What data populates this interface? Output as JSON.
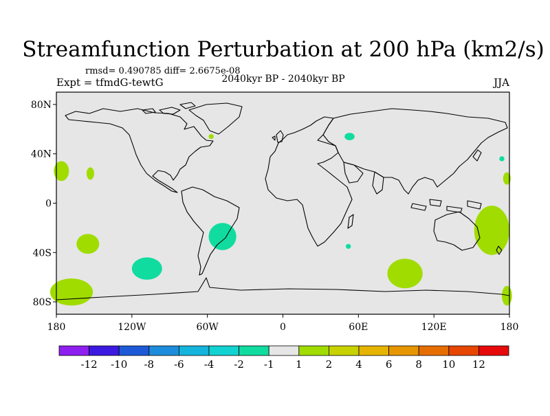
{
  "chart_data": {
    "type": "map",
    "title": "Streamfunction Perturbation at 200 hPa (km2/s)",
    "stats": "rmsd= 0.490785 diff= 2.6675e-08",
    "subtitle_left": "Expt = tfmdG-tewtG",
    "subtitle_center": "2040kyr BP - 2040kyr BP",
    "subtitle_right": "JJA",
    "x_tick_labels": [
      {
        "lon": -180,
        "label": "180"
      },
      {
        "lon": -120,
        "label": "120W"
      },
      {
        "lon": -60,
        "label": "60W"
      },
      {
        "lon": 0,
        "label": "0"
      },
      {
        "lon": 60,
        "label": "60E"
      },
      {
        "lon": 120,
        "label": "120E"
      },
      {
        "lon": 180,
        "label": "180"
      }
    ],
    "y_tick_labels": [
      {
        "lat": 80,
        "label": "80N"
      },
      {
        "lat": 40,
        "label": "40N"
      },
      {
        "lat": 0,
        "label": "0"
      },
      {
        "lat": -40,
        "label": "40S"
      },
      {
        "lat": -80,
        "label": "80S"
      }
    ],
    "lon_range": [
      -180,
      180
    ],
    "lat_range": [
      -90,
      90
    ],
    "colorbar": {
      "colors": [
        "#8f1ff0",
        "#3c19e1",
        "#1e5ad7",
        "#1e8cdc",
        "#14b4dc",
        "#12d2d2",
        "#10dca0",
        "#e6e6e6",
        "#a0dc00",
        "#c8d200",
        "#e6b400",
        "#e69600",
        "#e66e00",
        "#e64600",
        "#e60a0a"
      ],
      "labels": [
        "-12",
        "-10",
        "-8",
        "-6",
        "-4",
        "-2",
        "-1",
        "1",
        "2",
        "4",
        "6",
        "8",
        "10",
        "12"
      ]
    },
    "anomalies": [
      {
        "lon": -176,
        "lat": 26,
        "rlon": 6,
        "rlat": 8,
        "level": "2",
        "color": "#a0dc00"
      },
      {
        "lon": -153,
        "lat": 24,
        "rlon": 3,
        "rlat": 5,
        "level": "2",
        "color": "#a0dc00"
      },
      {
        "lon": -155,
        "lat": -33,
        "rlon": 9,
        "rlat": 8,
        "level": "2",
        "color": "#a0dc00"
      },
      {
        "lon": -108,
        "lat": -53,
        "rlon": 12,
        "rlat": 9,
        "level": "-1",
        "color": "#10dca0"
      },
      {
        "lon": -48,
        "lat": -27,
        "rlon": 11,
        "rlat": 11,
        "level": "-1",
        "color": "#10dca0"
      },
      {
        "lon": -168,
        "lat": -72,
        "rlon": 17,
        "rlat": 11,
        "level": "2",
        "color": "#a0dc00"
      },
      {
        "lon": -57,
        "lat": 54,
        "rlon": 2,
        "rlat": 2,
        "level": "2",
        "color": "#a0dc00"
      },
      {
        "lon": 53,
        "lat": 54,
        "rlon": 4,
        "rlat": 3,
        "level": "-1",
        "color": "#10dca0"
      },
      {
        "lon": 97,
        "lat": -57,
        "rlon": 14,
        "rlat": 12,
        "level": "2",
        "color": "#a0dc00"
      },
      {
        "lon": 52,
        "lat": -35,
        "rlon": 2,
        "rlat": 2,
        "level": "-1",
        "color": "#10dca0"
      },
      {
        "lon": 166,
        "lat": -22,
        "rlon": 14,
        "rlat": 20,
        "level": "2",
        "color": "#a0dc00"
      },
      {
        "lon": 178,
        "lat": 20,
        "rlon": 3,
        "rlat": 5,
        "level": "2",
        "color": "#a0dc00"
      },
      {
        "lon": 174,
        "lat": 36,
        "rlon": 2,
        "rlat": 2,
        "level": "-1",
        "color": "#10dca0"
      },
      {
        "lon": 178,
        "lat": -75,
        "rlon": 4,
        "rlat": 8,
        "level": "2",
        "color": "#a0dc00"
      }
    ]
  }
}
